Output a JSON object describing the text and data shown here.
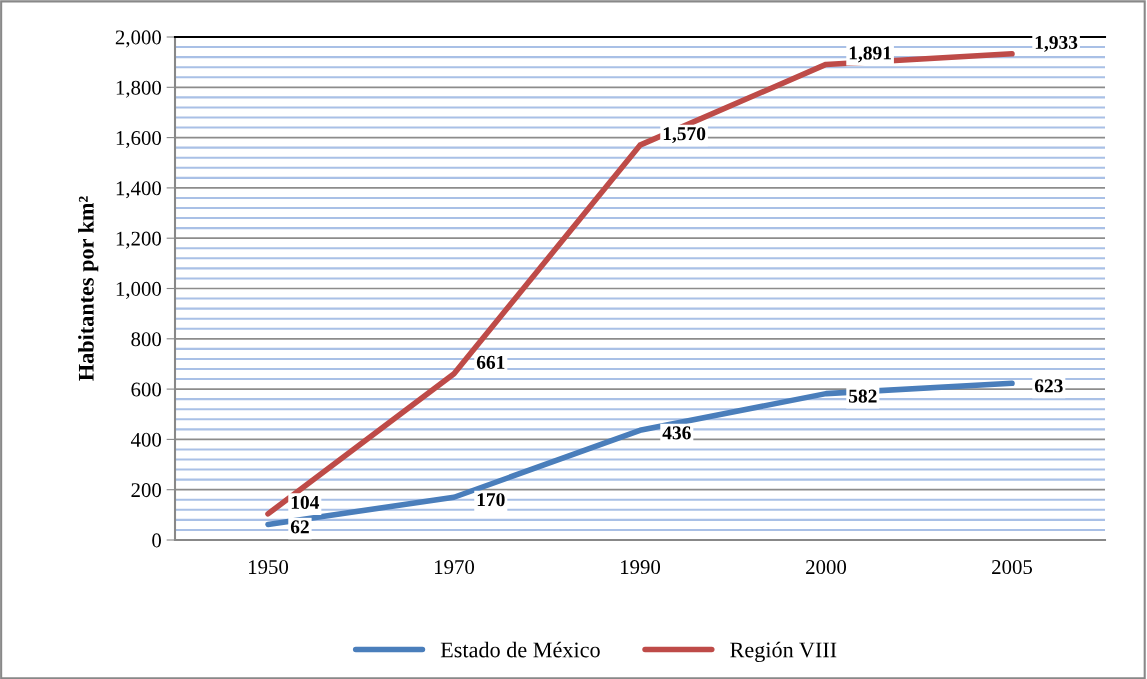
{
  "chart_data": {
    "type": "line",
    "ylabel": "Habitantes por km²",
    "categories": [
      "1950",
      "1970",
      "1990",
      "2000",
      "2005"
    ],
    "series": [
      {
        "name": "Estado de México",
        "color": "#4a7ebb",
        "values": [
          62,
          170,
          436,
          582,
          623
        ],
        "value_labels": [
          "62",
          "170",
          "436",
          "582",
          "623"
        ]
      },
      {
        "name": "Región VIII",
        "color": "#be4b48",
        "values": [
          104,
          661,
          1570,
          1891,
          1933
        ],
        "value_labels": [
          "104",
          "661",
          "1,570",
          "1,891",
          "1,933"
        ]
      }
    ],
    "ylim": [
      0,
      2000
    ],
    "yticks": [
      0,
      {
        "value": 40,
        "label": null
      },
      {
        "value": 80,
        "label": null
      },
      {
        "value": 120,
        "label": null
      },
      {
        "value": 160,
        "label": null
      },
      200,
      {
        "value": 240,
        "label": null
      },
      {
        "value": 280,
        "label": null
      },
      {
        "value": 320,
        "label": null
      },
      {
        "value": 360,
        "label": null
      },
      400,
      {
        "value": 440,
        "label": null
      },
      {
        "value": 480,
        "label": null
      },
      {
        "value": 520,
        "label": null
      },
      {
        "value": 560,
        "label": null
      },
      600,
      {
        "value": 640,
        "label": null
      },
      {
        "value": 680,
        "label": null
      },
      {
        "value": 720,
        "label": null
      },
      {
        "value": 760,
        "label": null
      },
      800,
      {
        "value": 840,
        "label": null
      },
      {
        "value": 880,
        "label": null
      },
      {
        "value": 920,
        "label": null
      },
      {
        "value": 960,
        "label": null
      },
      {
        "value": 1000,
        "label": "1,000"
      },
      {
        "value": 1040,
        "label": null
      },
      {
        "value": 1080,
        "label": null
      },
      {
        "value": 1120,
        "label": null
      },
      {
        "value": 1160,
        "label": null
      },
      {
        "value": 1200,
        "label": "1,200"
      },
      {
        "value": 1240,
        "label": null
      },
      {
        "value": 1280,
        "label": null
      },
      {
        "value": 1320,
        "label": null
      },
      {
        "value": 1360,
        "label": null
      },
      {
        "value": 1400,
        "label": "1,400"
      },
      {
        "value": 1440,
        "label": null
      },
      {
        "value": 1480,
        "label": null
      },
      {
        "value": 1520,
        "label": null
      },
      {
        "value": 1560,
        "label": null
      },
      {
        "value": 1600,
        "label": "1,600"
      },
      {
        "value": 1640,
        "label": null
      },
      {
        "value": 1680,
        "label": null
      },
      {
        "value": 1720,
        "label": null
      },
      {
        "value": 1760,
        "label": null
      },
      {
        "value": 1800,
        "label": "1,800"
      },
      {
        "value": 1840,
        "label": null
      },
      {
        "value": 1880,
        "label": null
      },
      {
        "value": 1920,
        "label": null
      },
      {
        "value": 1960,
        "label": null
      },
      {
        "value": 2000,
        "label": "2,000"
      }
    ],
    "grid": "y",
    "legend": "bottom",
    "marker": "none",
    "line_style": "solid"
  }
}
